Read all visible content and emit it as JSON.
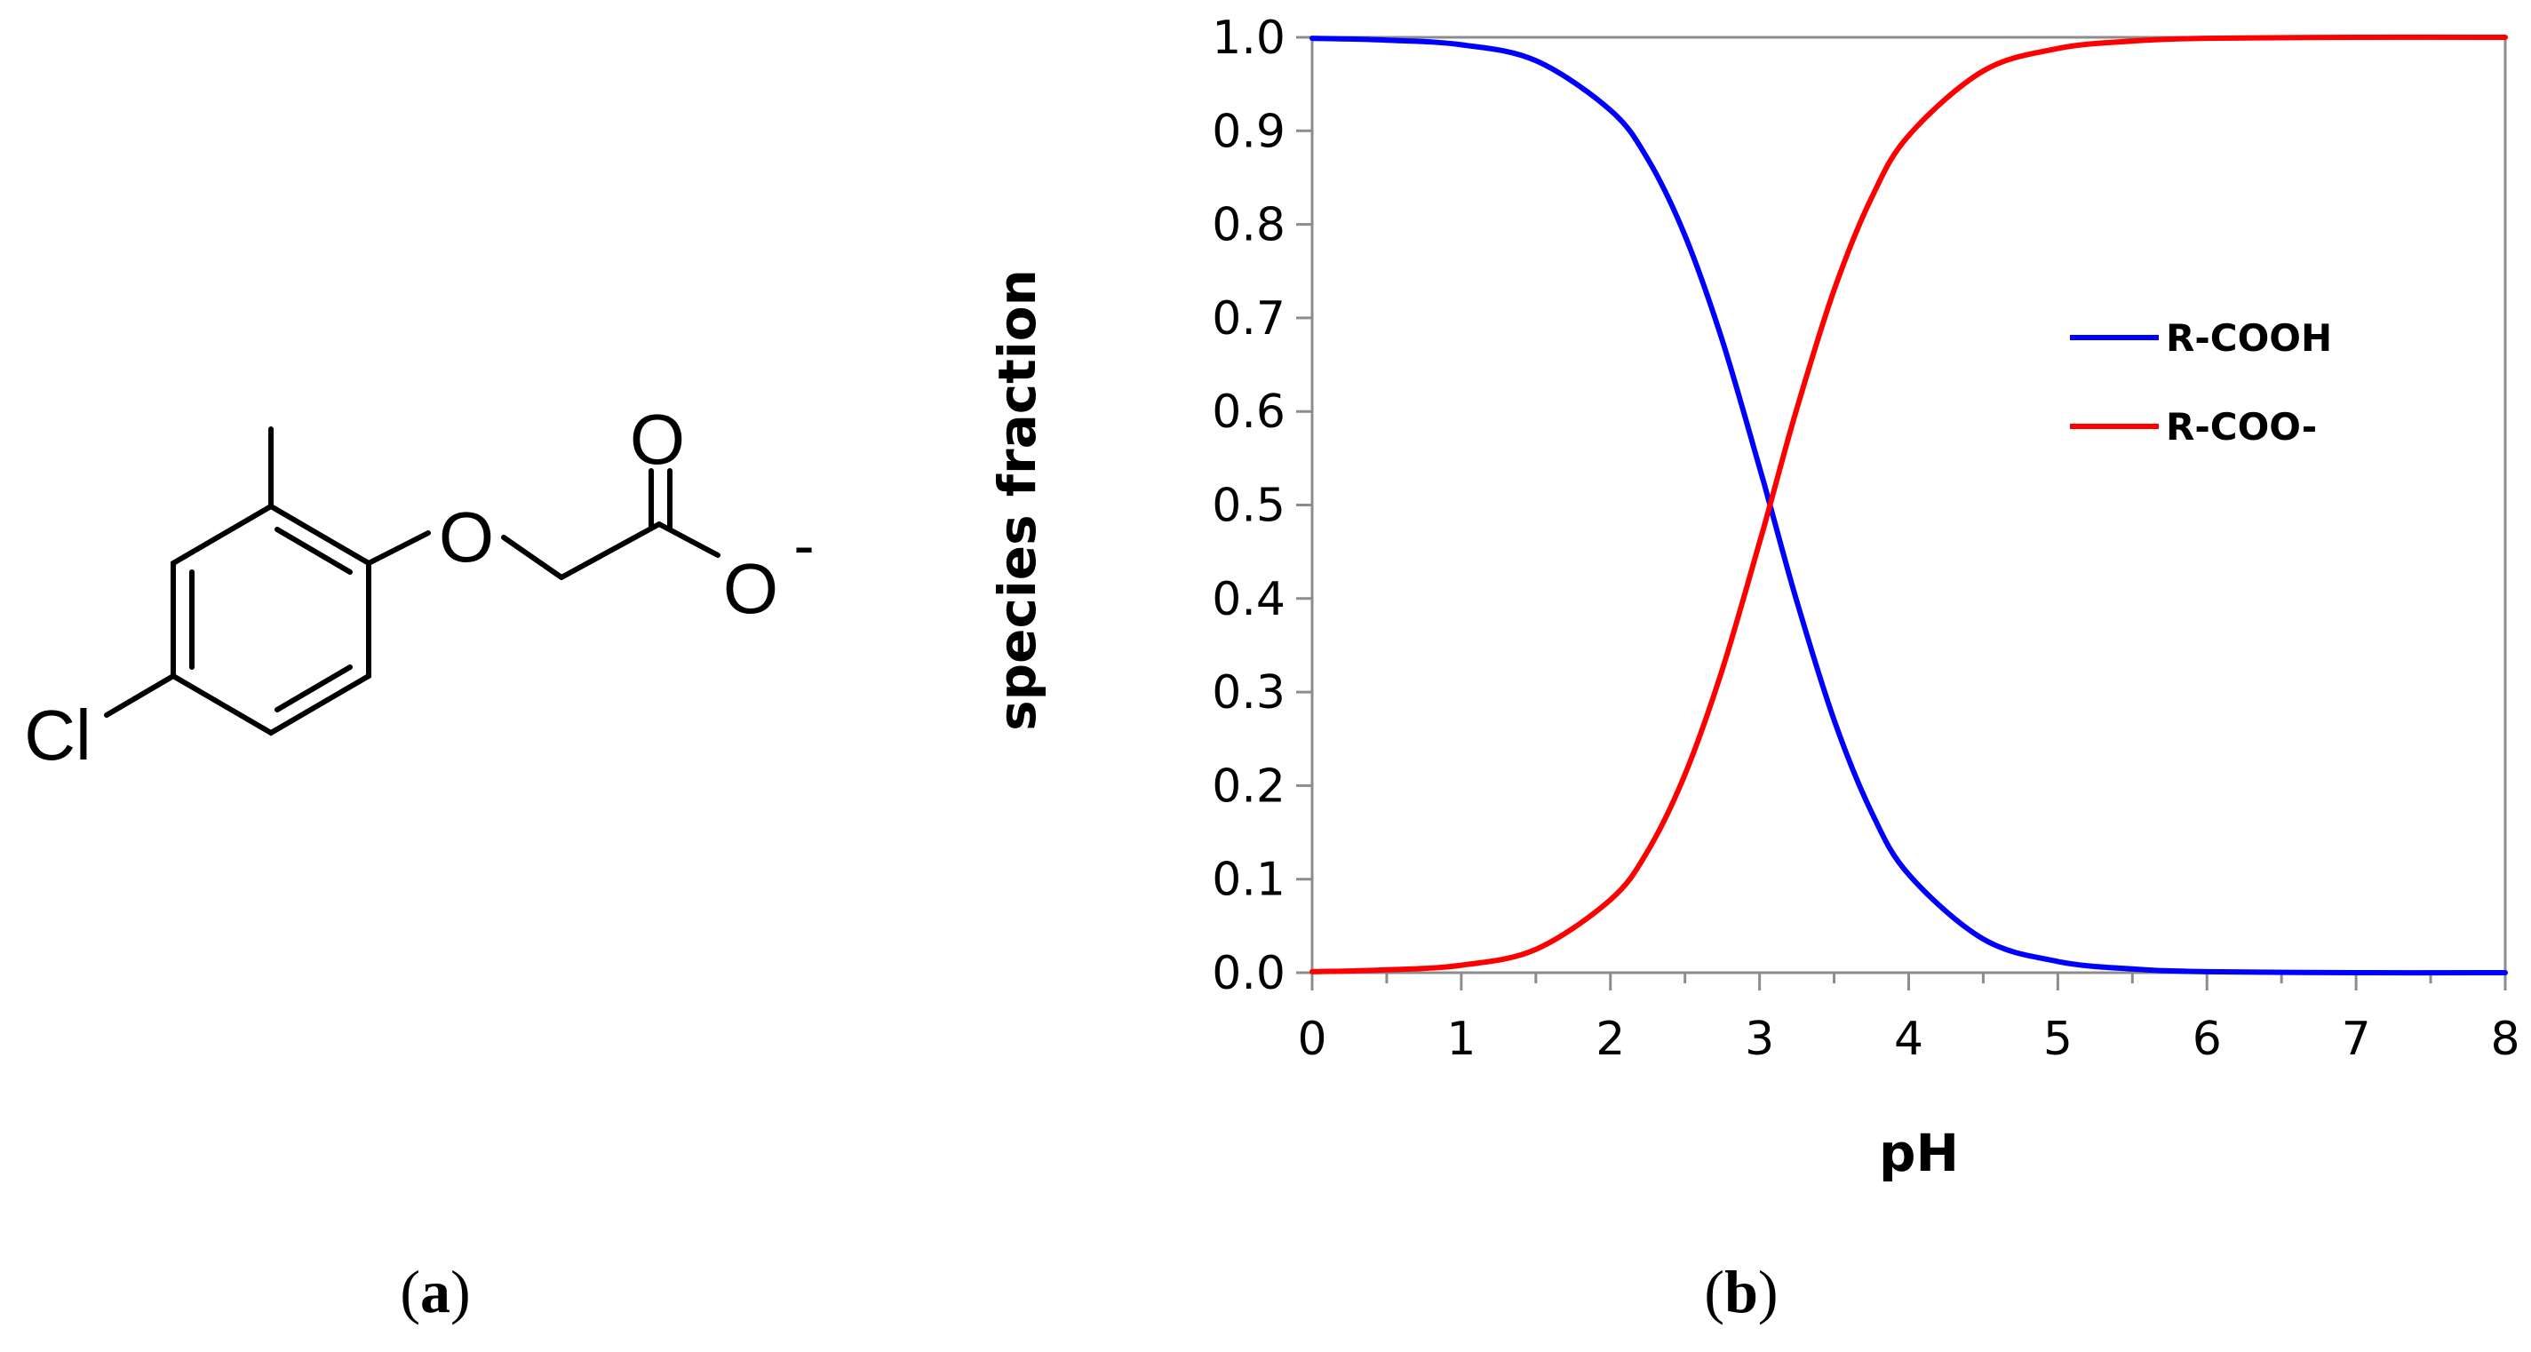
{
  "panel_a": {
    "label_open": "(",
    "label_letter": "a",
    "label_close": ")",
    "atoms": {
      "carbonyl_o": "O",
      "ether_o": "O",
      "anion_o": "O",
      "charge": "-",
      "chlorine": "Cl"
    }
  },
  "panel_b": {
    "label_open": "(",
    "label_letter": "b",
    "label_close": ")"
  },
  "chart_data": {
    "type": "line",
    "xlabel": "pH",
    "ylabel": "species fraction",
    "xlim": [
      0,
      8
    ],
    "ylim": [
      0,
      1
    ],
    "x_ticks": [
      "0",
      "1",
      "2",
      "3",
      "4",
      "5",
      "6",
      "7",
      "8"
    ],
    "y_ticks": [
      "0.0",
      "0.1",
      "0.2",
      "0.3",
      "0.4",
      "0.5",
      "0.6",
      "0.7",
      "0.8",
      "0.9",
      "1.0"
    ],
    "grid": false,
    "legend_position": "right",
    "x": [
      0,
      0.5,
      1,
      1.5,
      2,
      2.25,
      2.5,
      2.75,
      3,
      3.07,
      3.25,
      3.5,
      3.75,
      4,
      4.5,
      5,
      5.5,
      6,
      7,
      8
    ],
    "series": [
      {
        "name": "R-COOH",
        "color": "#0000ff",
        "values": [
          0.999,
          0.997,
          0.992,
          0.975,
          0.922,
          0.87,
          0.788,
          0.676,
          0.54,
          0.5,
          0.397,
          0.27,
          0.172,
          0.105,
          0.036,
          0.012,
          0.004,
          0.001,
          0.0,
          0.0
        ]
      },
      {
        "name": "R-COO-",
        "color": "#ff0000",
        "values": [
          0.001,
          0.003,
          0.008,
          0.025,
          0.078,
          0.13,
          0.212,
          0.324,
          0.46,
          0.5,
          0.603,
          0.73,
          0.828,
          0.895,
          0.964,
          0.988,
          0.996,
          0.999,
          1.0,
          1.0
        ]
      }
    ]
  }
}
